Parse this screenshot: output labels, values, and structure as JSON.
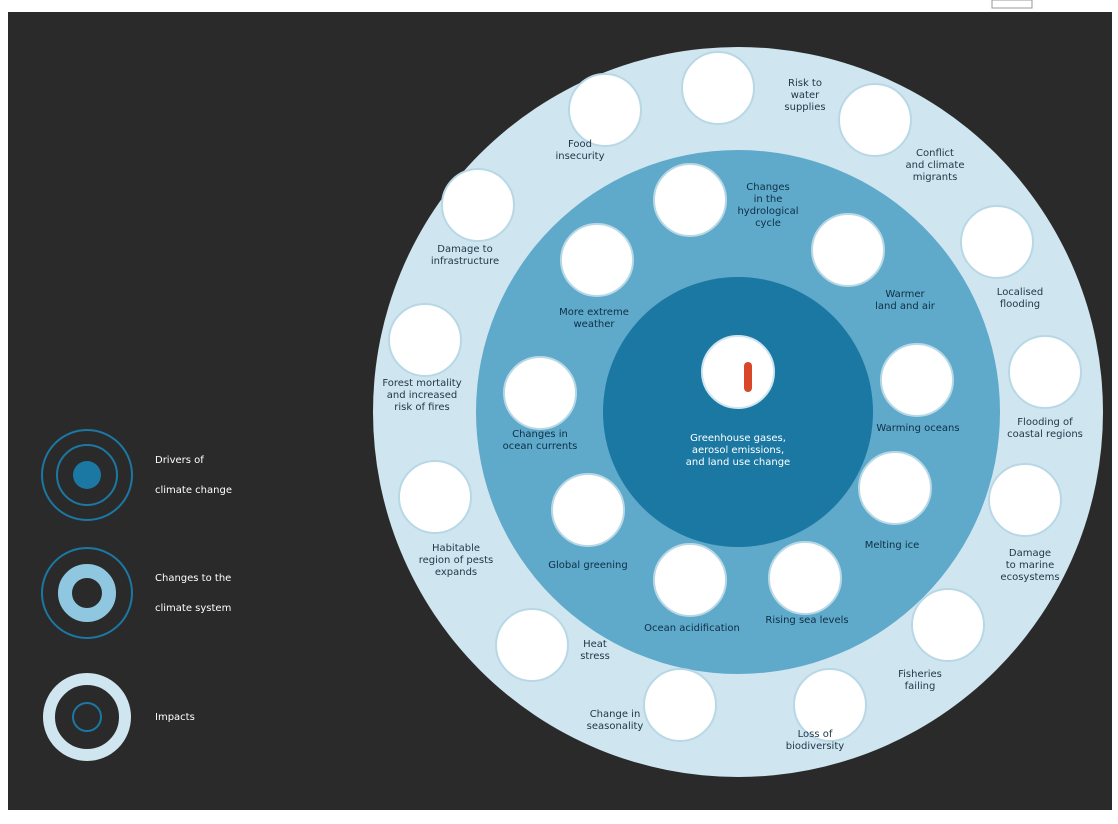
{
  "legend": [
    {
      "label": [
        "Drivers of",
        "climate change"
      ]
    },
    {
      "label": [
        "Changes to the",
        "climate system"
      ]
    },
    {
      "label": [
        "Impacts"
      ]
    }
  ],
  "center": {
    "label": [
      "Greenhouse gases,",
      "aerosol emissions,",
      "and land use change"
    ]
  },
  "climate_system": [
    {
      "label": [
        "Changes",
        "in the",
        "hydrological",
        "cycle"
      ]
    },
    {
      "label": [
        "Warmer",
        "land and air"
      ]
    },
    {
      "label": [
        "Warming oceans"
      ]
    },
    {
      "label": [
        "Melting ice"
      ]
    },
    {
      "label": [
        "Rising sea levels"
      ]
    },
    {
      "label": [
        "Ocean acidification"
      ]
    },
    {
      "label": [
        "Global greening"
      ]
    },
    {
      "label": [
        "Changes in",
        "ocean currents"
      ]
    },
    {
      "label": [
        "More extreme",
        "weather"
      ]
    }
  ],
  "impacts": [
    {
      "label": [
        "Risk to",
        "water",
        "supplies"
      ]
    },
    {
      "label": [
        "Conflict",
        "and climate",
        "migrants"
      ]
    },
    {
      "label": [
        "Localised",
        "flooding"
      ]
    },
    {
      "label": [
        "Flooding of",
        "coastal regions"
      ]
    },
    {
      "label": [
        "Damage",
        "to marine",
        "ecosystems"
      ]
    },
    {
      "label": [
        "Fisheries",
        "failing"
      ]
    },
    {
      "label": [
        "Loss of",
        "biodiversity"
      ]
    },
    {
      "label": [
        "Change in",
        "seasonality"
      ]
    },
    {
      "label": [
        "Heat",
        "stress"
      ]
    },
    {
      "label": [
        "Habitable",
        "region of pests",
        "expands"
      ]
    },
    {
      "label": [
        "Forest mortality",
        "and increased",
        "risk of fires"
      ]
    },
    {
      "label": [
        "Damage to",
        "infrastructure"
      ]
    },
    {
      "label": [
        "Food",
        "insecurity"
      ]
    }
  ]
}
